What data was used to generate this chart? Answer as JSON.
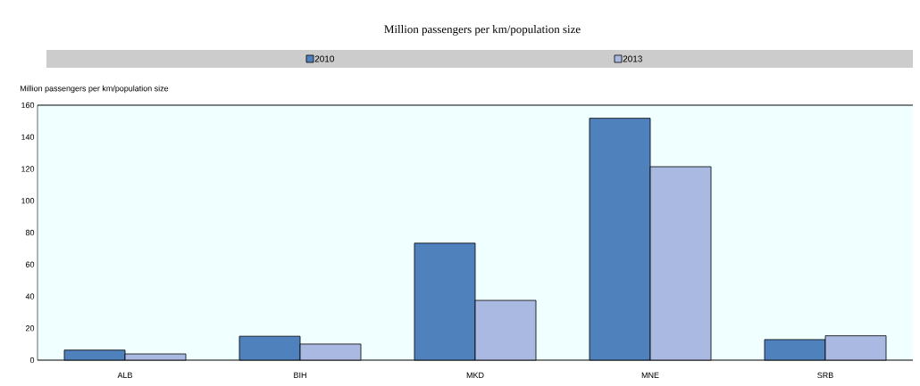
{
  "chart_data": {
    "type": "bar",
    "title": "Million passengers per km/population size",
    "ylabel": "Million passengers per km/population size",
    "categories": [
      "ALB",
      "BIH",
      "MKD",
      "MNE",
      "SRB"
    ],
    "series": [
      {
        "name": "2010",
        "color": "#4f81bd",
        "values": [
          6.3,
          15.0,
          73.4,
          151.8,
          12.9
        ]
      },
      {
        "name": "2013",
        "color": "#a9b9e1",
        "values": [
          3.9,
          10.1,
          37.5,
          121.4,
          15.3
        ]
      }
    ],
    "ylim": [
      0,
      160
    ],
    "yticks": [
      0,
      20,
      40,
      60,
      80,
      100,
      120,
      140,
      160
    ],
    "legend": "top"
  }
}
